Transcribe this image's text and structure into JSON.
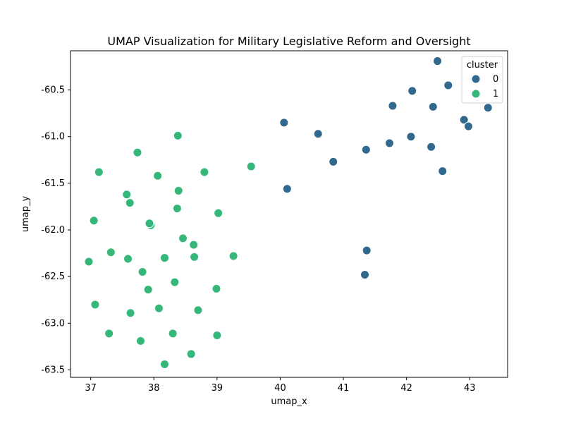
{
  "chart_data": {
    "type": "scatter",
    "title": "UMAP Visualization for Military Legislative Reform and Oversight",
    "xlabel": "umap_x",
    "ylabel": "umap_y",
    "xlim": [
      36.68,
      43.6
    ],
    "ylim": [
      -63.58,
      -60.08
    ],
    "xticks": [
      "37",
      "38",
      "39",
      "40",
      "41",
      "42",
      "43"
    ],
    "yticks": [
      "-60.5",
      "-61.0",
      "-61.5",
      "-62.0",
      "-62.5",
      "-63.0",
      "-63.5"
    ],
    "grid": false,
    "legend": {
      "title": "cluster",
      "placement": "top-right",
      "entries": [
        "0",
        "1"
      ]
    },
    "colors": {
      "0": "#31688e",
      "1": "#35b779"
    },
    "series": [
      {
        "name": "0",
        "points": [
          [
            42.49,
            -60.19
          ],
          [
            42.66,
            -60.45
          ],
          [
            42.09,
            -60.51
          ],
          [
            41.78,
            -60.67
          ],
          [
            42.42,
            -60.68
          ],
          [
            43.29,
            -60.69
          ],
          [
            42.91,
            -60.82
          ],
          [
            42.98,
            -60.89
          ],
          [
            40.06,
            -60.85
          ],
          [
            40.6,
            -60.97
          ],
          [
            42.07,
            -61.0
          ],
          [
            41.73,
            -61.07
          ],
          [
            42.39,
            -61.11
          ],
          [
            41.36,
            -61.14
          ],
          [
            40.84,
            -61.27
          ],
          [
            42.57,
            -61.37
          ],
          [
            40.11,
            -61.56
          ],
          [
            41.37,
            -62.22
          ],
          [
            41.34,
            -62.48
          ]
        ]
      },
      {
        "name": "1",
        "points": [
          [
            38.38,
            -60.99
          ],
          [
            37.74,
            -61.17
          ],
          [
            39.54,
            -61.32
          ],
          [
            37.13,
            -61.38
          ],
          [
            38.8,
            -61.38
          ],
          [
            38.06,
            -61.42
          ],
          [
            38.39,
            -61.58
          ],
          [
            37.57,
            -61.62
          ],
          [
            37.62,
            -61.71
          ],
          [
            38.37,
            -61.77
          ],
          [
            39.02,
            -61.82
          ],
          [
            37.05,
            -61.9
          ],
          [
            37.95,
            -61.95
          ],
          [
            37.93,
            -61.93
          ],
          [
            38.46,
            -62.09
          ],
          [
            38.63,
            -62.16
          ],
          [
            37.32,
            -62.24
          ],
          [
            39.26,
            -62.28
          ],
          [
            38.64,
            -62.29
          ],
          [
            37.59,
            -62.31
          ],
          [
            38.17,
            -62.3
          ],
          [
            36.97,
            -62.34
          ],
          [
            37.82,
            -62.45
          ],
          [
            38.33,
            -62.56
          ],
          [
            38.99,
            -62.63
          ],
          [
            37.91,
            -62.64
          ],
          [
            37.07,
            -62.8
          ],
          [
            38.08,
            -62.84
          ],
          [
            38.7,
            -62.86
          ],
          [
            37.63,
            -62.89
          ],
          [
            37.29,
            -63.11
          ],
          [
            38.3,
            -63.11
          ],
          [
            39.0,
            -63.13
          ],
          [
            37.79,
            -63.19
          ],
          [
            38.59,
            -63.33
          ],
          [
            38.17,
            -63.44
          ]
        ]
      }
    ]
  }
}
